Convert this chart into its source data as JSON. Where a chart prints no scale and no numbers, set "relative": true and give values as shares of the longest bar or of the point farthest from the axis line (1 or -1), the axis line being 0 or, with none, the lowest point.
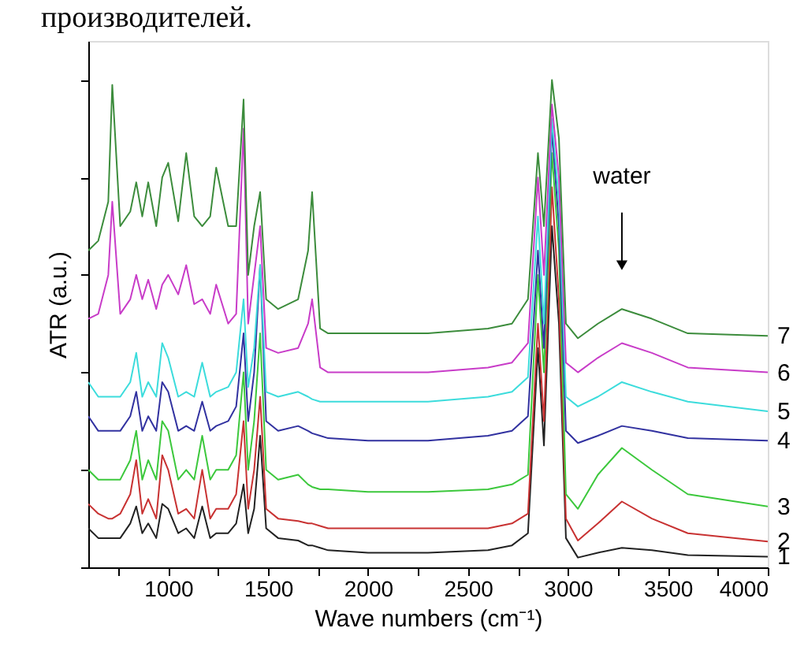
{
  "chart_data": {
    "type": "line",
    "relative": true,
    "xlabel": "Wave numbers (cm⁻¹)",
    "ylabel": "ATR (a.u.)",
    "annotations": [
      "производителей.",
      {
        "text": "water",
        "x": 3270,
        "y": 0.62
      }
    ],
    "xlim": [
      600,
      4000
    ],
    "xticks": [
      {
        "value": 750,
        "label": null
      },
      1000,
      {
        "value": 1250,
        "label": null
      },
      1500,
      {
        "value": 1750,
        "label": null
      },
      2000,
      {
        "value": 2250,
        "label": null
      },
      2500,
      {
        "value": 2750,
        "label": null
      },
      3000,
      {
        "value": 3250,
        "label": null
      },
      3500,
      {
        "value": 3750,
        "label": null
      },
      4000
    ],
    "tick_labels": "x",
    "legend": false,
    "grid": false,
    "line_style": "solid",
    "marker": "none",
    "x": [
      600,
      650,
      700,
      720,
      760,
      810,
      840,
      870,
      900,
      940,
      970,
      1000,
      1050,
      1090,
      1130,
      1170,
      1210,
      1240,
      1300,
      1340,
      1377,
      1400,
      1430,
      1460,
      1490,
      1550,
      1650,
      1700,
      1720,
      1760,
      1800,
      2000,
      2300,
      2600,
      2720,
      2800,
      2850,
      2880,
      2920,
      2955,
      2990,
      3050,
      3150,
      3270,
      3420,
      3600,
      4000
    ],
    "series": [
      {
        "name": "1",
        "color": "#222222",
        "values": [
          0.08,
          0.06,
          0.06,
          0.06,
          0.06,
          0.09,
          0.125,
          0.07,
          0.09,
          0.06,
          0.13,
          0.12,
          0.07,
          0.08,
          0.06,
          0.125,
          0.06,
          0.07,
          0.07,
          0.09,
          0.17,
          0.07,
          0.12,
          0.27,
          0.08,
          0.06,
          0.055,
          0.045,
          0.045,
          0.04,
          0.035,
          0.03,
          0.03,
          0.035,
          0.045,
          0.07,
          0.45,
          0.25,
          0.7,
          0.5,
          0.06,
          0.02,
          0.03,
          0.04,
          0.035,
          0.025,
          0.022
        ]
      },
      {
        "name": "2",
        "color": "#c83232",
        "values": [
          0.13,
          0.11,
          0.1,
          0.1,
          0.11,
          0.15,
          0.22,
          0.11,
          0.14,
          0.1,
          0.23,
          0.2,
          0.11,
          0.12,
          0.1,
          0.2,
          0.1,
          0.12,
          0.12,
          0.15,
          0.3,
          0.12,
          0.2,
          0.35,
          0.12,
          0.1,
          0.095,
          0.09,
          0.09,
          0.085,
          0.08,
          0.08,
          0.08,
          0.08,
          0.09,
          0.11,
          0.5,
          0.3,
          0.78,
          0.55,
          0.1,
          0.055,
          0.09,
          0.135,
          0.1,
          0.07,
          0.053
        ]
      },
      {
        "name": "3",
        "color": "#3cc83c",
        "values": [
          0.2,
          0.18,
          0.18,
          0.18,
          0.18,
          0.22,
          0.28,
          0.18,
          0.22,
          0.18,
          0.3,
          0.28,
          0.18,
          0.2,
          0.18,
          0.27,
          0.18,
          0.2,
          0.2,
          0.23,
          0.4,
          0.2,
          0.3,
          0.48,
          0.2,
          0.18,
          0.19,
          0.17,
          0.165,
          0.16,
          0.16,
          0.155,
          0.155,
          0.16,
          0.17,
          0.19,
          0.6,
          0.4,
          0.85,
          0.65,
          0.15,
          0.12,
          0.19,
          0.245,
          0.2,
          0.15,
          0.125
        ]
      },
      {
        "name": "4",
        "color": "#3232a0",
        "values": [
          0.31,
          0.28,
          0.28,
          0.28,
          0.28,
          0.31,
          0.36,
          0.28,
          0.31,
          0.28,
          0.38,
          0.36,
          0.28,
          0.29,
          0.28,
          0.34,
          0.28,
          0.29,
          0.3,
          0.33,
          0.48,
          0.3,
          0.4,
          0.62,
          0.3,
          0.28,
          0.29,
          0.28,
          0.275,
          0.27,
          0.265,
          0.26,
          0.26,
          0.27,
          0.28,
          0.31,
          0.65,
          0.45,
          0.9,
          0.7,
          0.28,
          0.255,
          0.27,
          0.29,
          0.28,
          0.265,
          0.26
        ]
      },
      {
        "name": "5",
        "color": "#3cdcdc",
        "values": [
          0.38,
          0.35,
          0.35,
          0.35,
          0.35,
          0.38,
          0.44,
          0.35,
          0.38,
          0.35,
          0.46,
          0.43,
          0.35,
          0.36,
          0.35,
          0.42,
          0.35,
          0.36,
          0.37,
          0.4,
          0.55,
          0.37,
          0.45,
          0.62,
          0.36,
          0.35,
          0.36,
          0.35,
          0.345,
          0.34,
          0.34,
          0.34,
          0.34,
          0.35,
          0.36,
          0.39,
          0.72,
          0.5,
          0.92,
          0.75,
          0.35,
          0.33,
          0.35,
          0.38,
          0.36,
          0.34,
          0.32
        ]
      },
      {
        "name": "6",
        "color": "#c83cc8",
        "values": [
          0.51,
          0.52,
          0.6,
          0.75,
          0.52,
          0.55,
          0.6,
          0.55,
          0.59,
          0.53,
          0.58,
          0.6,
          0.56,
          0.62,
          0.54,
          0.55,
          0.52,
          0.58,
          0.5,
          0.52,
          0.9,
          0.5,
          0.6,
          0.7,
          0.45,
          0.44,
          0.45,
          0.5,
          0.55,
          0.41,
          0.4,
          0.4,
          0.4,
          0.41,
          0.42,
          0.46,
          0.8,
          0.6,
          0.95,
          0.8,
          0.42,
          0.4,
          0.43,
          0.46,
          0.44,
          0.41,
          0.4
        ]
      },
      {
        "name": "7",
        "color": "#3c8c3c",
        "values": [
          0.65,
          0.67,
          0.75,
          0.99,
          0.7,
          0.73,
          0.79,
          0.72,
          0.79,
          0.7,
          0.8,
          0.83,
          0.71,
          0.85,
          0.72,
          0.7,
          0.72,
          0.82,
          0.7,
          0.7,
          0.96,
          0.6,
          0.7,
          0.77,
          0.55,
          0.53,
          0.55,
          0.65,
          0.77,
          0.49,
          0.48,
          0.48,
          0.48,
          0.49,
          0.5,
          0.55,
          0.85,
          0.7,
          1.0,
          0.88,
          0.5,
          0.47,
          0.5,
          0.53,
          0.51,
          0.48,
          0.475
        ]
      }
    ]
  }
}
